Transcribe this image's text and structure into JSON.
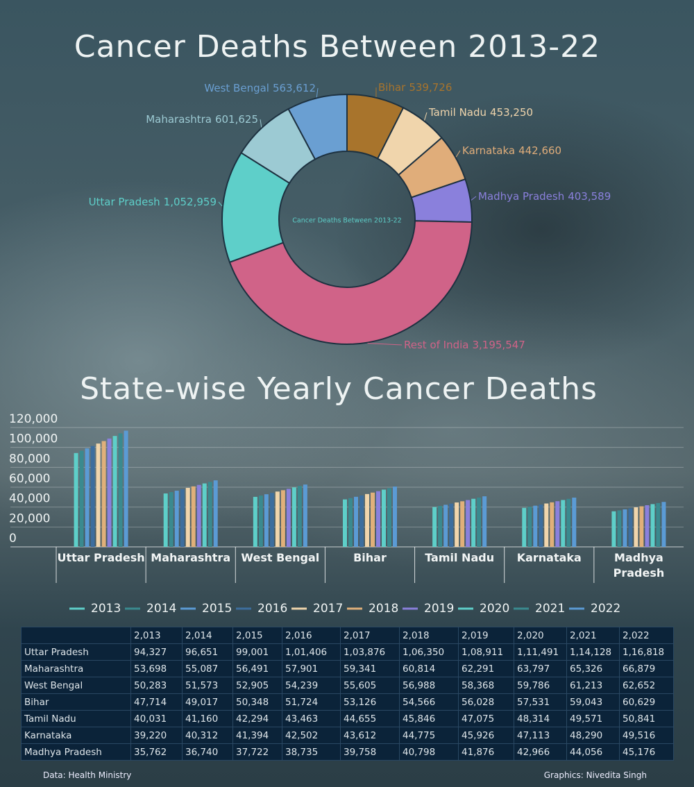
{
  "chart_data": [
    {
      "type": "donut",
      "title": "Cancer Deaths Between 2013-22",
      "center_label": "Cancer Deaths Between 2013-22",
      "categories": [
        "Bihar",
        "Tamil Nadu",
        "Karnataka",
        "Madhya Pradesh",
        "Rest of India",
        "Uttar Pradesh",
        "Maharashtra",
        "West Bengal"
      ],
      "values": [
        539726,
        453250,
        442660,
        403589,
        3195547,
        1052959,
        601625,
        563612
      ],
      "value_labels": [
        "539,726",
        "453,250",
        "442,660",
        "403,589",
        "3,195,547",
        "1,052,959",
        "601,625",
        "563,612"
      ],
      "colors": [
        "#a8742c",
        "#f0d5ac",
        "#e0ad7a",
        "#8a80dc",
        "#d06388",
        "#5ecfc9",
        "#9ccad3",
        "#6a9fd2"
      ]
    },
    {
      "type": "bar",
      "title": "State-wise Yearly Cancer Deaths",
      "categories": [
        "Uttar Pradesh",
        "Maharashtra",
        "West Bengal",
        "Bihar",
        "Tamil Nadu",
        "Karnataka",
        "Madhya Pradesh"
      ],
      "series": [
        {
          "name": "2013",
          "color": "#5ecfc9",
          "values": [
            94327,
            53698,
            50283,
            47714,
            40031,
            39220,
            35762
          ]
        },
        {
          "name": "2014",
          "color": "#3a8a8f",
          "values": [
            96651,
            55087,
            51573,
            49017,
            41160,
            40312,
            36740
          ]
        },
        {
          "name": "2015",
          "color": "#5b9bd5",
          "values": [
            99001,
            56491,
            52905,
            50348,
            42294,
            41394,
            37722
          ]
        },
        {
          "name": "2016",
          "color": "#3d6e9e",
          "values": [
            101406,
            57901,
            54239,
            51724,
            43463,
            42502,
            38735
          ]
        },
        {
          "name": "2017",
          "color": "#f0d5ac",
          "values": [
            103876,
            59341,
            55605,
            53126,
            44655,
            43612,
            39758
          ]
        },
        {
          "name": "2018",
          "color": "#e0b07a",
          "values": [
            106350,
            60814,
            56988,
            54566,
            45846,
            44775,
            40798
          ]
        },
        {
          "name": "2019",
          "color": "#8a80dc",
          "values": [
            108911,
            62291,
            58368,
            56028,
            47075,
            45926,
            41876
          ]
        },
        {
          "name": "2020",
          "color": "#5ecfc9",
          "values": [
            111491,
            63797,
            59786,
            57531,
            48314,
            47113,
            42966
          ]
        },
        {
          "name": "2021",
          "color": "#3a8a8f",
          "values": [
            114128,
            65326,
            61213,
            59043,
            49571,
            48290,
            44056
          ]
        },
        {
          "name": "2022",
          "color": "#5b9bd5",
          "values": [
            116818,
            66879,
            62652,
            60629,
            50841,
            49516,
            45176
          ]
        }
      ],
      "ylim": [
        0,
        120000
      ],
      "yticks": [
        0,
        {
          "value": 20000,
          "label": "20,000"
        },
        {
          "value": 40000,
          "label": "40,000"
        },
        {
          "value": 60000,
          "label": "60,000"
        },
        {
          "value": 80000,
          "label": "80,000"
        },
        {
          "value": 100000,
          "label": "100,000"
        },
        {
          "value": 120000,
          "label": "120,000"
        }
      ],
      "grid": true,
      "legend": "bottom"
    }
  ],
  "table": {
    "header": [
      "2,013",
      "2,014",
      "2,015",
      "2,016",
      "2,017",
      "2,018",
      "2,019",
      "2,020",
      "2,021",
      "2,022"
    ],
    "rows": [
      [
        "Uttar Pradesh",
        "94,327",
        "96,651",
        "99,001",
        "1,01,406",
        "1,03,876",
        "1,06,350",
        "1,08,911",
        "1,11,491",
        "1,14,128",
        "1,16,818"
      ],
      [
        "Maharashtra",
        "53,698",
        "55,087",
        "56,491",
        "57,901",
        "59,341",
        "60,814",
        "62,291",
        "63,797",
        "65,326",
        "66,879"
      ],
      [
        "West Bengal",
        "50,283",
        "51,573",
        "52,905",
        "54,239",
        "55,605",
        "56,988",
        "58,368",
        "59,786",
        "61,213",
        "62,652"
      ],
      [
        "Bihar",
        "47,714",
        "49,017",
        "50,348",
        "51,724",
        "53,126",
        "54,566",
        "56,028",
        "57,531",
        "59,043",
        "60,629"
      ],
      [
        "Tamil Nadu",
        "40,031",
        "41,160",
        "42,294",
        "43,463",
        "44,655",
        "45,846",
        "47,075",
        "48,314",
        "49,571",
        "50,841"
      ],
      [
        "Karnataka",
        "39,220",
        "40,312",
        "41,394",
        "42,502",
        "43,612",
        "44,775",
        "45,926",
        "47,113",
        "48,290",
        "49,516"
      ],
      [
        "Madhya Pradesh",
        "35,762",
        "36,740",
        "37,722",
        "38,735",
        "39,758",
        "40,798",
        "41,876",
        "42,966",
        "44,056",
        "45,176"
      ]
    ]
  },
  "footer": {
    "source": "Data: Health Ministry",
    "credit": "Graphics: Nivedita Singh"
  }
}
